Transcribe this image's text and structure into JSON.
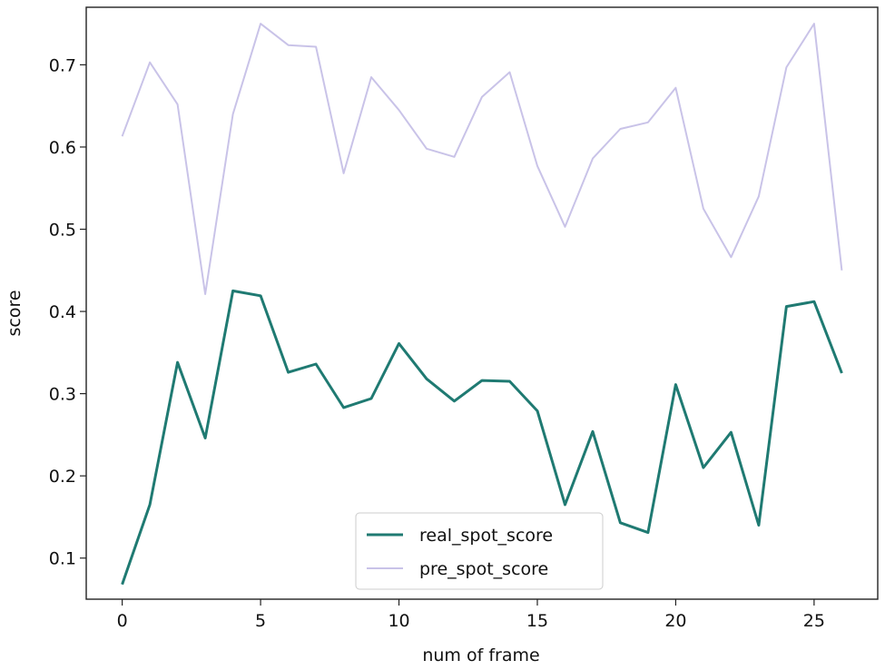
{
  "chart_data": {
    "type": "line",
    "xlabel": "num of frame",
    "ylabel": "score",
    "xlim": [
      -1.3,
      27.3
    ],
    "ylim": [
      0.05,
      0.77
    ],
    "xticks": [
      0,
      5,
      10,
      15,
      20,
      25
    ],
    "yticks": [
      0.1,
      0.2,
      0.3,
      0.4,
      0.5,
      0.6,
      0.7
    ],
    "grid": false,
    "legend_position": "bottom-center",
    "x": [
      0,
      1,
      2,
      3,
      4,
      5,
      6,
      7,
      8,
      9,
      10,
      11,
      12,
      13,
      14,
      15,
      16,
      17,
      18,
      19,
      20,
      21,
      22,
      23,
      24,
      25,
      26
    ],
    "series": [
      {
        "name": "real_spot_score",
        "color": "#1f7a72",
        "values": [
          0.068,
          0.165,
          0.338,
          0.246,
          0.425,
          0.419,
          0.326,
          0.336,
          0.283,
          0.294,
          0.361,
          0.318,
          0.291,
          0.316,
          0.315,
          0.279,
          0.165,
          0.254,
          0.143,
          0.131,
          0.311,
          0.21,
          0.253,
          0.14,
          0.406,
          0.412,
          0.325
        ]
      },
      {
        "name": "pre_spot_score",
        "color": "#c9c3e8",
        "values": [
          0.613,
          0.703,
          0.652,
          0.421,
          0.64,
          0.75,
          0.724,
          0.722,
          0.568,
          0.685,
          0.645,
          0.598,
          0.588,
          0.661,
          0.691,
          0.577,
          0.503,
          0.586,
          0.622,
          0.63,
          0.672,
          0.525,
          0.466,
          0.54,
          0.697,
          0.75,
          0.45
        ]
      }
    ]
  }
}
